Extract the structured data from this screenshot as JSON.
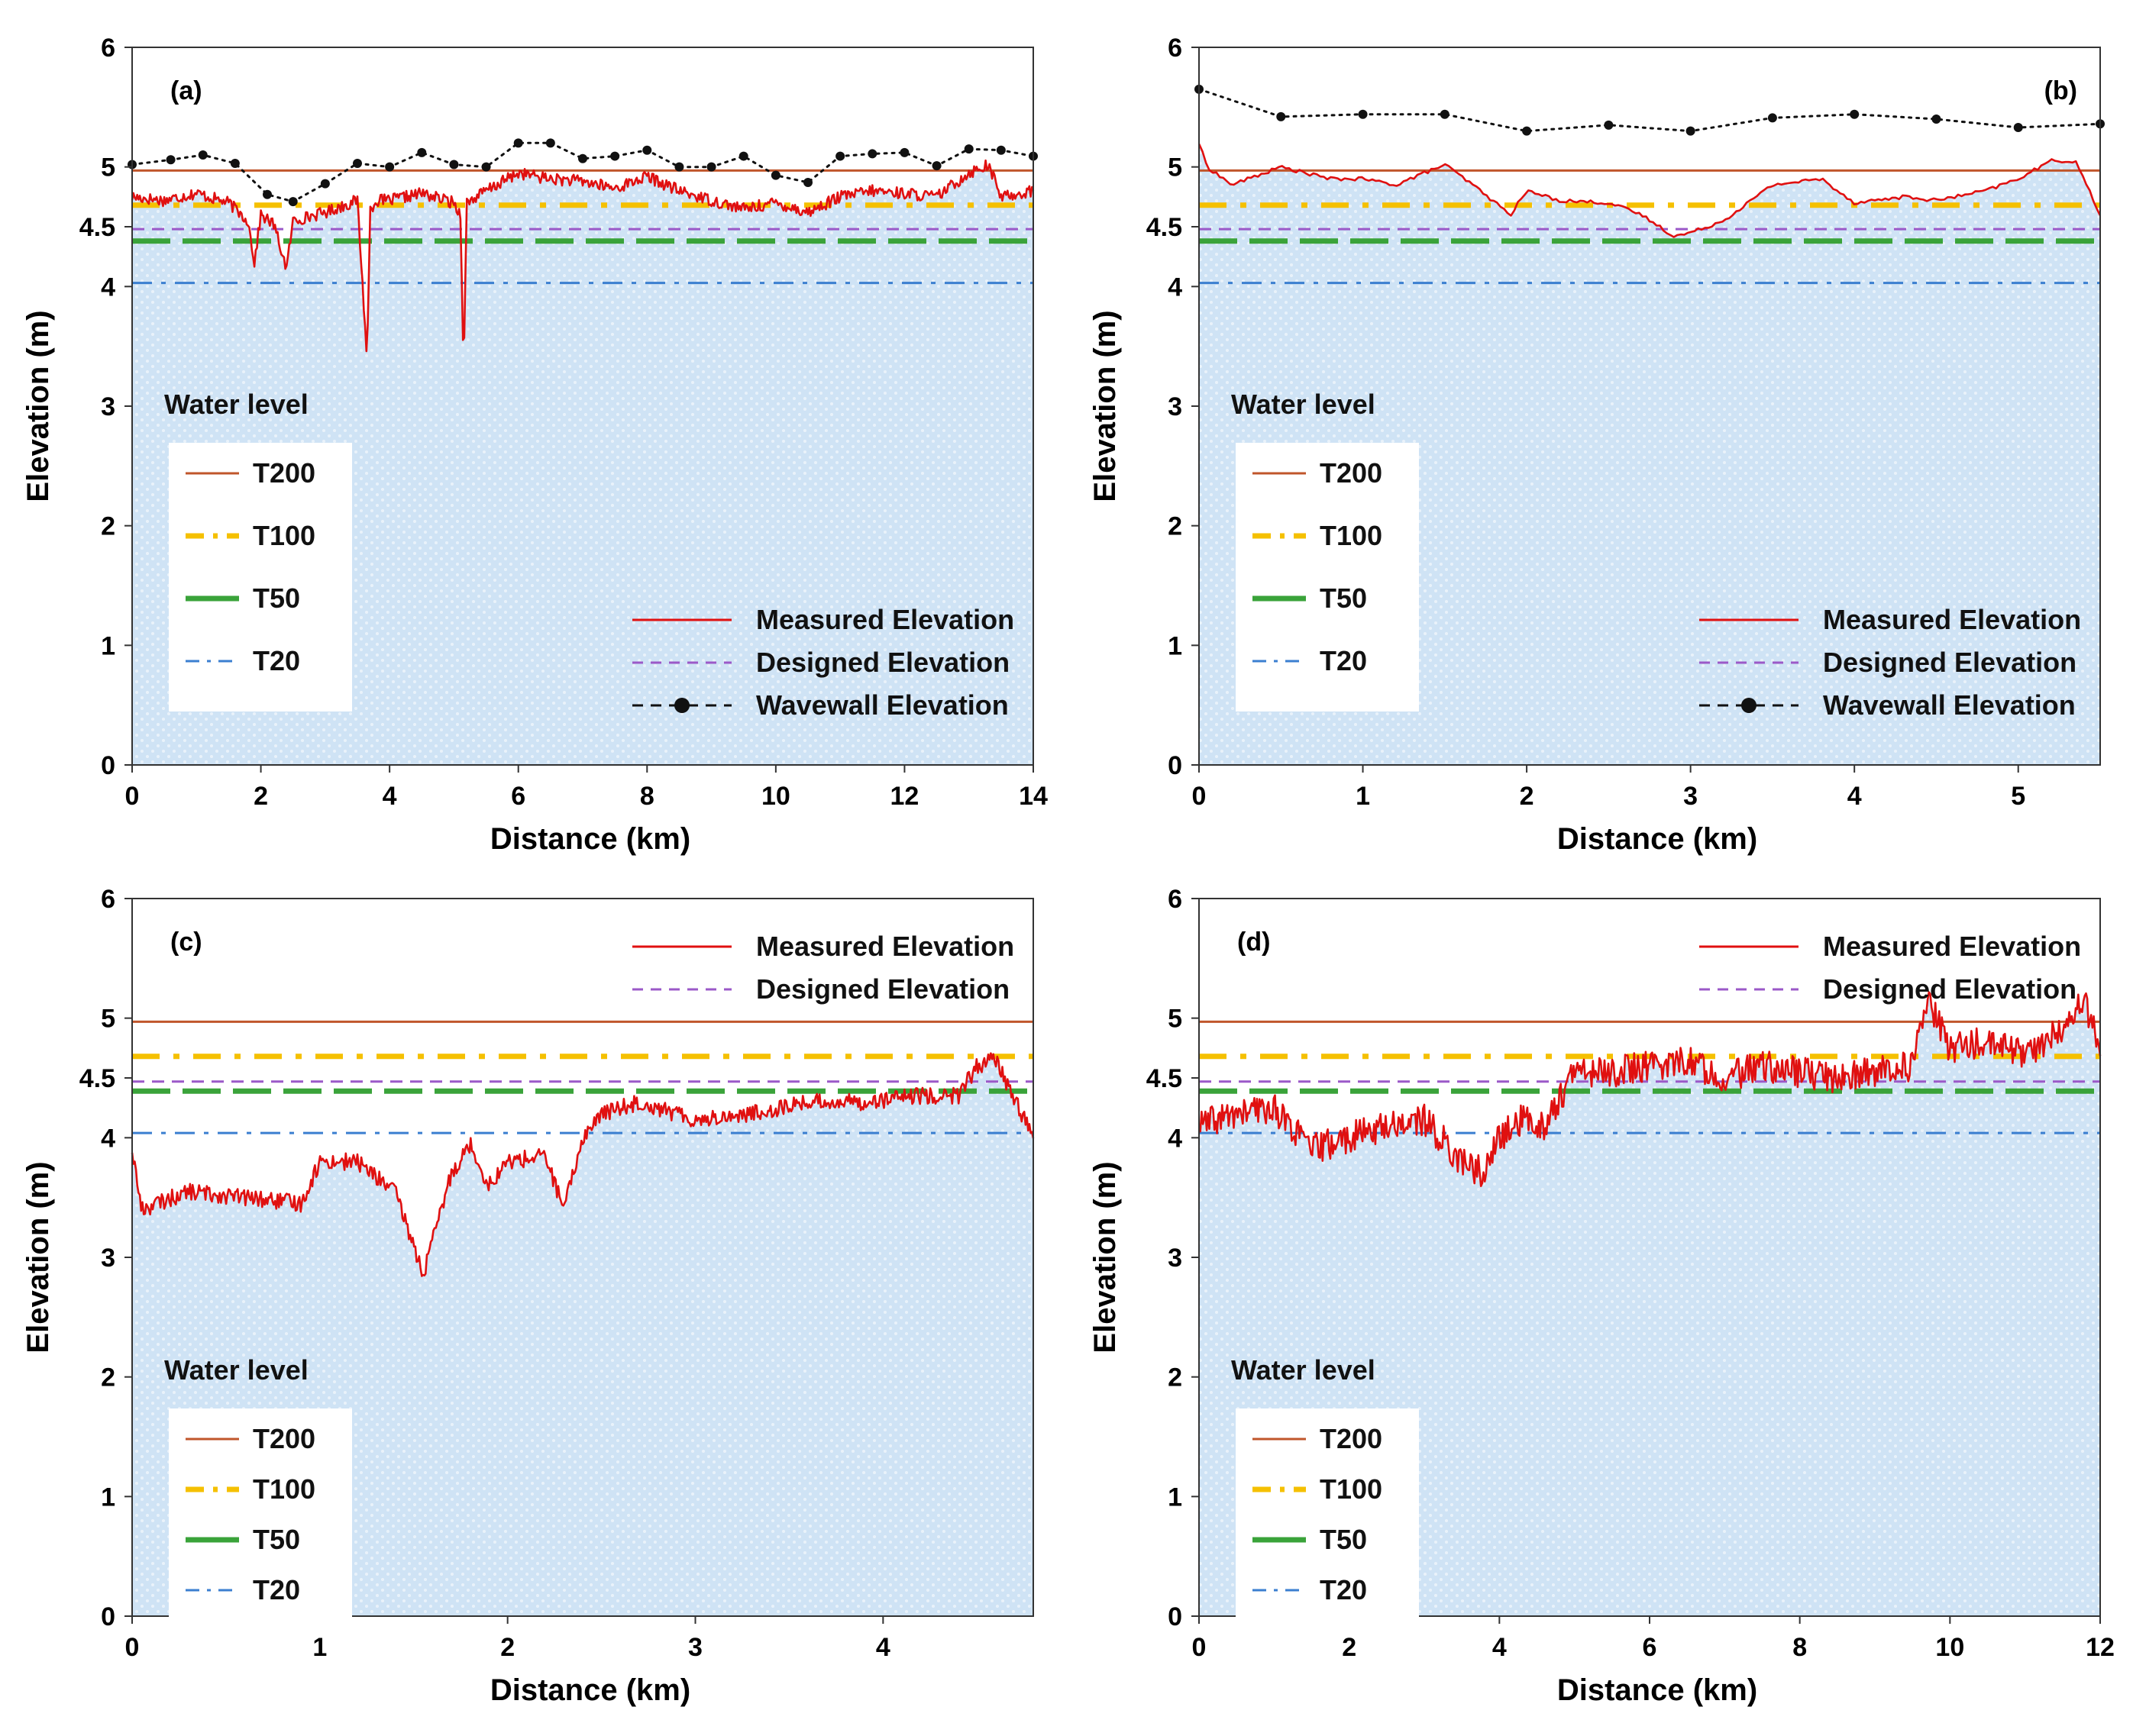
{
  "figure": {
    "wl_title": "Water level",
    "legend_labels": {
      "t200": "T200",
      "t100": "T100",
      "t50": "T50",
      "t20": "T20",
      "measured": "Measured Elevation",
      "designed": "Designed   Elevation",
      "wavewall": "Wavewall   Elevation"
    },
    "colors": {
      "t200": "#c0562b",
      "t100": "#f5c000",
      "t50": "#3aa33a",
      "t20": "#3b7fd0",
      "measured": "#e01010",
      "designed": "#9b59c8",
      "wavewall": "#111111",
      "fill": "#cfe3f5"
    }
  },
  "chart_data": [
    {
      "id": "a",
      "type": "line",
      "panel_label": "(a)",
      "xlabel": "Distance (km)",
      "ylabel": "Elevation (m)",
      "xlim": [
        0,
        14
      ],
      "ylim": [
        0,
        6
      ],
      "xticks": [
        0,
        2,
        4,
        6,
        8,
        10,
        12,
        14
      ],
      "yticks": [
        0,
        1,
        2,
        3,
        4,
        4.5,
        5,
        6
      ],
      "levels": {
        "T200": 4.97,
        "T100": 4.68,
        "T50": 4.38,
        "T20": 4.03,
        "designed": 4.48
      },
      "legend": {
        "water_level": "bottom-left",
        "series": "bottom-right",
        "show_wavewall": true
      },
      "wavewall": {
        "x": [
          0,
          0.6,
          1.1,
          1.6,
          2.1,
          2.5,
          3.0,
          3.5,
          4.0,
          4.5,
          5.0,
          5.5,
          6.0,
          6.5,
          7.0,
          7.5,
          8.0,
          8.5,
          9.0,
          9.5,
          10.0,
          10.5,
          11.0,
          11.5,
          12.0,
          12.5,
          13.0,
          13.5,
          14.0
        ],
        "y": [
          5.02,
          5.06,
          5.1,
          5.03,
          4.77,
          4.71,
          4.86,
          5.03,
          5.0,
          5.12,
          5.02,
          5.0,
          5.2,
          5.2,
          5.07,
          5.09,
          5.14,
          5.0,
          5.0,
          5.09,
          4.93,
          4.87,
          5.09,
          5.11,
          5.12,
          5.01,
          5.15,
          5.14,
          5.09
        ]
      },
      "measured": {
        "x": [
          0,
          0.5,
          1.0,
          1.5,
          1.8,
          1.9,
          2.0,
          2.2,
          2.4,
          2.5,
          3.0,
          3.5,
          3.65,
          3.7,
          3.8,
          4.0,
          4.5,
          5.0,
          5.1,
          5.15,
          5.2,
          5.5,
          6.0,
          6.5,
          7.0,
          7.5,
          8.0,
          8.5,
          9.0,
          9.5,
          10.0,
          10.5,
          11.0,
          11.5,
          12.0,
          12.5,
          13.0,
          13.3,
          13.5,
          14.0
        ],
        "y": [
          4.75,
          4.72,
          4.78,
          4.7,
          4.55,
          4.2,
          4.6,
          4.52,
          4.15,
          4.55,
          4.62,
          4.72,
          3.4,
          4.65,
          4.72,
          4.72,
          4.78,
          4.7,
          4.6,
          3.35,
          4.7,
          4.8,
          4.95,
          4.9,
          4.88,
          4.82,
          4.92,
          4.8,
          4.72,
          4.65,
          4.7,
          4.62,
          4.75,
          4.8,
          4.78,
          4.75,
          4.95,
          5.02,
          4.75,
          4.8
        ]
      }
    },
    {
      "id": "b",
      "type": "line",
      "panel_label": "(b)",
      "xlabel": "Distance (km)",
      "ylabel": "Elevation (m)",
      "xlim": [
        0,
        5.5
      ],
      "ylim": [
        0,
        6
      ],
      "xticks": [
        0,
        1,
        2,
        3,
        4,
        5
      ],
      "yticks": [
        0,
        1,
        2,
        3,
        4,
        4.5,
        5,
        6
      ],
      "levels": {
        "T200": 4.97,
        "T100": 4.68,
        "T50": 4.38,
        "T20": 4.03,
        "designed": 4.48
      },
      "legend": {
        "water_level": "bottom-left",
        "series": "bottom-right",
        "show_wavewall": true
      },
      "wavewall": {
        "x": [
          0,
          0.5,
          1.0,
          1.5,
          2.0,
          2.5,
          3.0,
          3.5,
          4.0,
          4.5,
          5.0,
          5.5
        ],
        "y": [
          5.65,
          5.42,
          5.44,
          5.44,
          5.3,
          5.35,
          5.3,
          5.41,
          5.44,
          5.4,
          5.33,
          5.36
        ]
      },
      "measured": {
        "x": [
          0,
          0.05,
          0.2,
          0.5,
          0.8,
          1.0,
          1.2,
          1.5,
          1.7,
          1.9,
          2.0,
          2.2,
          2.5,
          2.7,
          2.9,
          3.0,
          3.2,
          3.5,
          3.8,
          4.0,
          4.3,
          4.5,
          4.8,
          5.0,
          5.2,
          5.35,
          5.5
        ],
        "y": [
          5.2,
          5.0,
          4.85,
          5.0,
          4.9,
          4.9,
          4.85,
          5.02,
          4.82,
          4.6,
          4.8,
          4.72,
          4.7,
          4.6,
          4.42,
          4.45,
          4.55,
          4.85,
          4.9,
          4.7,
          4.75,
          4.72,
          4.8,
          4.9,
          5.05,
          5.05,
          4.6
        ]
      }
    },
    {
      "id": "c",
      "type": "line",
      "panel_label": "(c)",
      "xlabel": "Distance (km)",
      "ylabel": "Elevation (m)",
      "xlim": [
        0,
        4.8
      ],
      "ylim": [
        0,
        6
      ],
      "xticks": [
        0,
        1,
        2,
        3,
        4
      ],
      "yticks": [
        0,
        1,
        2,
        3,
        4,
        4.5,
        5,
        6
      ],
      "levels": {
        "T200": 4.97,
        "T100": 4.68,
        "T50": 4.39,
        "T20": 4.04,
        "designed": 4.47
      },
      "legend": {
        "water_level": "bottom-left",
        "series": "top-right",
        "show_wavewall": false
      },
      "measured": {
        "x": [
          0,
          0.05,
          0.3,
          0.6,
          0.9,
          1.0,
          1.2,
          1.4,
          1.5,
          1.55,
          1.7,
          1.8,
          1.9,
          2.0,
          2.2,
          2.3,
          2.4,
          2.5,
          2.7,
          3.0,
          3.3,
          3.6,
          3.9,
          4.2,
          4.4,
          4.5,
          4.6,
          4.8
        ],
        "y": [
          3.9,
          3.4,
          3.55,
          3.5,
          3.45,
          3.8,
          3.8,
          3.55,
          3.1,
          2.85,
          3.7,
          3.95,
          3.6,
          3.8,
          3.85,
          3.4,
          4.0,
          4.2,
          4.3,
          4.15,
          4.2,
          4.3,
          4.3,
          4.35,
          4.35,
          4.6,
          4.65,
          4.0
        ]
      }
    },
    {
      "id": "d",
      "type": "line",
      "panel_label": "(d)",
      "xlabel": "Distance (km)",
      "ylabel": "Elevation (m)",
      "xlim": [
        0,
        12
      ],
      "ylim": [
        0,
        6
      ],
      "xticks": [
        0,
        2,
        4,
        6,
        8,
        10,
        12
      ],
      "yticks": [
        0,
        1,
        2,
        3,
        4,
        4.5,
        5,
        6
      ],
      "levels": {
        "T200": 4.97,
        "T100": 4.68,
        "T50": 4.39,
        "T20": 4.04,
        "designed": 4.47
      },
      "legend": {
        "water_level": "bottom-left",
        "series": "top-right",
        "show_wavewall": false
      },
      "measured": {
        "x": [
          0,
          0.5,
          1.0,
          1.5,
          2.0,
          2.5,
          3.0,
          3.5,
          3.8,
          4.0,
          4.3,
          4.6,
          5.0,
          5.5,
          6.0,
          6.5,
          7.0,
          7.5,
          8.0,
          8.5,
          9.0,
          9.5,
          9.7,
          10.0,
          10.5,
          11.0,
          11.5,
          11.8,
          12.0
        ],
        "y": [
          4.1,
          4.2,
          4.25,
          3.9,
          4.0,
          4.1,
          4.15,
          3.8,
          3.7,
          4.0,
          4.15,
          4.1,
          4.55,
          4.55,
          4.6,
          4.65,
          4.5,
          4.6,
          4.55,
          4.5,
          4.55,
          4.6,
          5.15,
          4.75,
          4.8,
          4.7,
          4.9,
          5.15,
          4.7
        ]
      }
    }
  ]
}
